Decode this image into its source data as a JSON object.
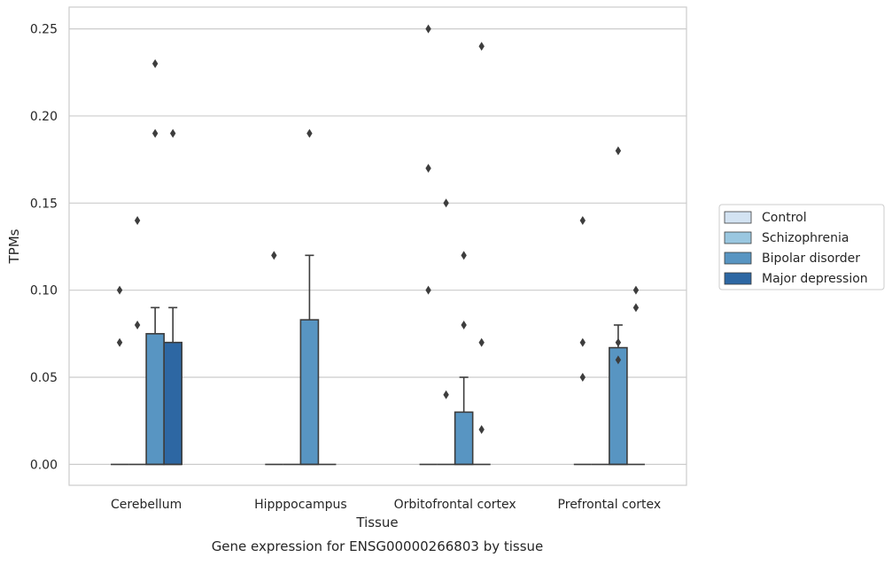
{
  "chart_data": {
    "type": "boxplot",
    "title": "Gene expression for ENSG00000266803 by tissue",
    "xlabel": "Tissue",
    "ylabel": "TPMs",
    "ylim": [
      -0.012,
      0.2625
    ],
    "yticks": [
      0.0,
      0.05,
      0.1,
      0.15,
      0.2,
      0.25
    ],
    "ytick_labels": [
      "0.00",
      "0.05",
      "0.10",
      "0.15",
      "0.20",
      "0.25"
    ],
    "grid": true,
    "legend_position": "right",
    "categories": [
      "Cerebellum",
      "Hipppocampus",
      "Orbitofrontal cortex",
      "Prefrontal cortex"
    ],
    "series": [
      {
        "name": "Control",
        "color": "#d3e3f2",
        "boxes": [
          {
            "q1": 0,
            "median": 0,
            "q3": 0,
            "whisker_low": 0,
            "whisker_high": 0,
            "outliers": [
              0.07,
              0.1
            ]
          },
          {
            "q1": 0,
            "median": 0,
            "q3": 0,
            "whisker_low": 0,
            "whisker_high": 0,
            "outliers": [
              0.12
            ]
          },
          {
            "q1": 0,
            "median": 0,
            "q3": 0,
            "whisker_low": 0,
            "whisker_high": 0,
            "outliers": [
              0.1,
              0.17,
              0.25
            ]
          },
          {
            "q1": 0,
            "median": 0,
            "q3": 0,
            "whisker_low": 0,
            "whisker_high": 0,
            "outliers": [
              0.05,
              0.07,
              0.14
            ]
          }
        ]
      },
      {
        "name": "Schizophrenia",
        "color": "#9ac7e0",
        "boxes": [
          {
            "q1": 0,
            "median": 0,
            "q3": 0,
            "whisker_low": 0,
            "whisker_high": 0,
            "outliers": [
              0.08,
              0.14
            ]
          },
          {
            "q1": 0,
            "median": 0,
            "q3": 0,
            "whisker_low": 0,
            "whisker_high": 0,
            "outliers": []
          },
          {
            "q1": 0,
            "median": 0,
            "q3": 0,
            "whisker_low": 0,
            "whisker_high": 0,
            "outliers": [
              0.04,
              0.15
            ]
          },
          {
            "q1": 0,
            "median": 0,
            "q3": 0,
            "whisker_low": 0,
            "whisker_high": 0,
            "outliers": []
          }
        ]
      },
      {
        "name": "Bipolar disorder",
        "color": "#5895c2",
        "boxes": [
          {
            "q1": 0,
            "median": 0,
            "q3": 0.075,
            "whisker_low": 0,
            "whisker_high": 0.09,
            "outliers": [
              0.19,
              0.23
            ]
          },
          {
            "q1": 0,
            "median": 0,
            "q3": 0.083,
            "whisker_low": 0,
            "whisker_high": 0.12,
            "outliers": [
              0.19
            ]
          },
          {
            "q1": 0,
            "median": 0,
            "q3": 0.03,
            "whisker_low": 0,
            "whisker_high": 0.05,
            "outliers": [
              0.08,
              0.12
            ]
          },
          {
            "q1": 0,
            "median": 0,
            "q3": 0.067,
            "whisker_low": 0,
            "whisker_high": 0.08,
            "outliers": [
              0.06,
              0.07,
              0.18
            ]
          }
        ]
      },
      {
        "name": "Major depression",
        "color": "#2d67a3",
        "boxes": [
          {
            "q1": 0,
            "median": 0,
            "q3": 0.07,
            "whisker_low": 0,
            "whisker_high": 0.09,
            "outliers": [
              0.19
            ]
          },
          {
            "q1": 0,
            "median": 0,
            "q3": 0,
            "whisker_low": 0,
            "whisker_high": 0,
            "outliers": []
          },
          {
            "q1": 0,
            "median": 0,
            "q3": 0,
            "whisker_low": 0,
            "whisker_high": 0,
            "outliers": [
              0.02,
              0.07,
              0.24
            ]
          },
          {
            "q1": 0,
            "median": 0,
            "q3": 0,
            "whisker_low": 0,
            "whisker_high": 0,
            "outliers": [
              0.09,
              0.1
            ]
          }
        ]
      }
    ]
  }
}
